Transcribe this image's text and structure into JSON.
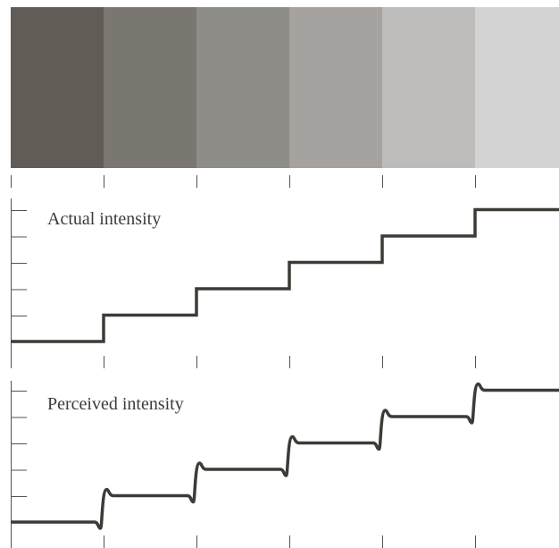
{
  "colors": {
    "bands": [
      "#615c56",
      "#7a7670",
      "#8f8d88",
      "#a5a29f",
      "#bdbcba",
      "#d3d3d3"
    ],
    "line": "#3e3b37",
    "axis": "#555250"
  },
  "actual_panel": {
    "label": "Actual intensity",
    "levels": [
      1,
      2,
      3,
      4,
      5,
      6
    ]
  },
  "perceived_panel": {
    "label": "Perceived intensity",
    "levels": [
      1,
      2,
      3,
      4,
      5,
      6
    ]
  }
}
